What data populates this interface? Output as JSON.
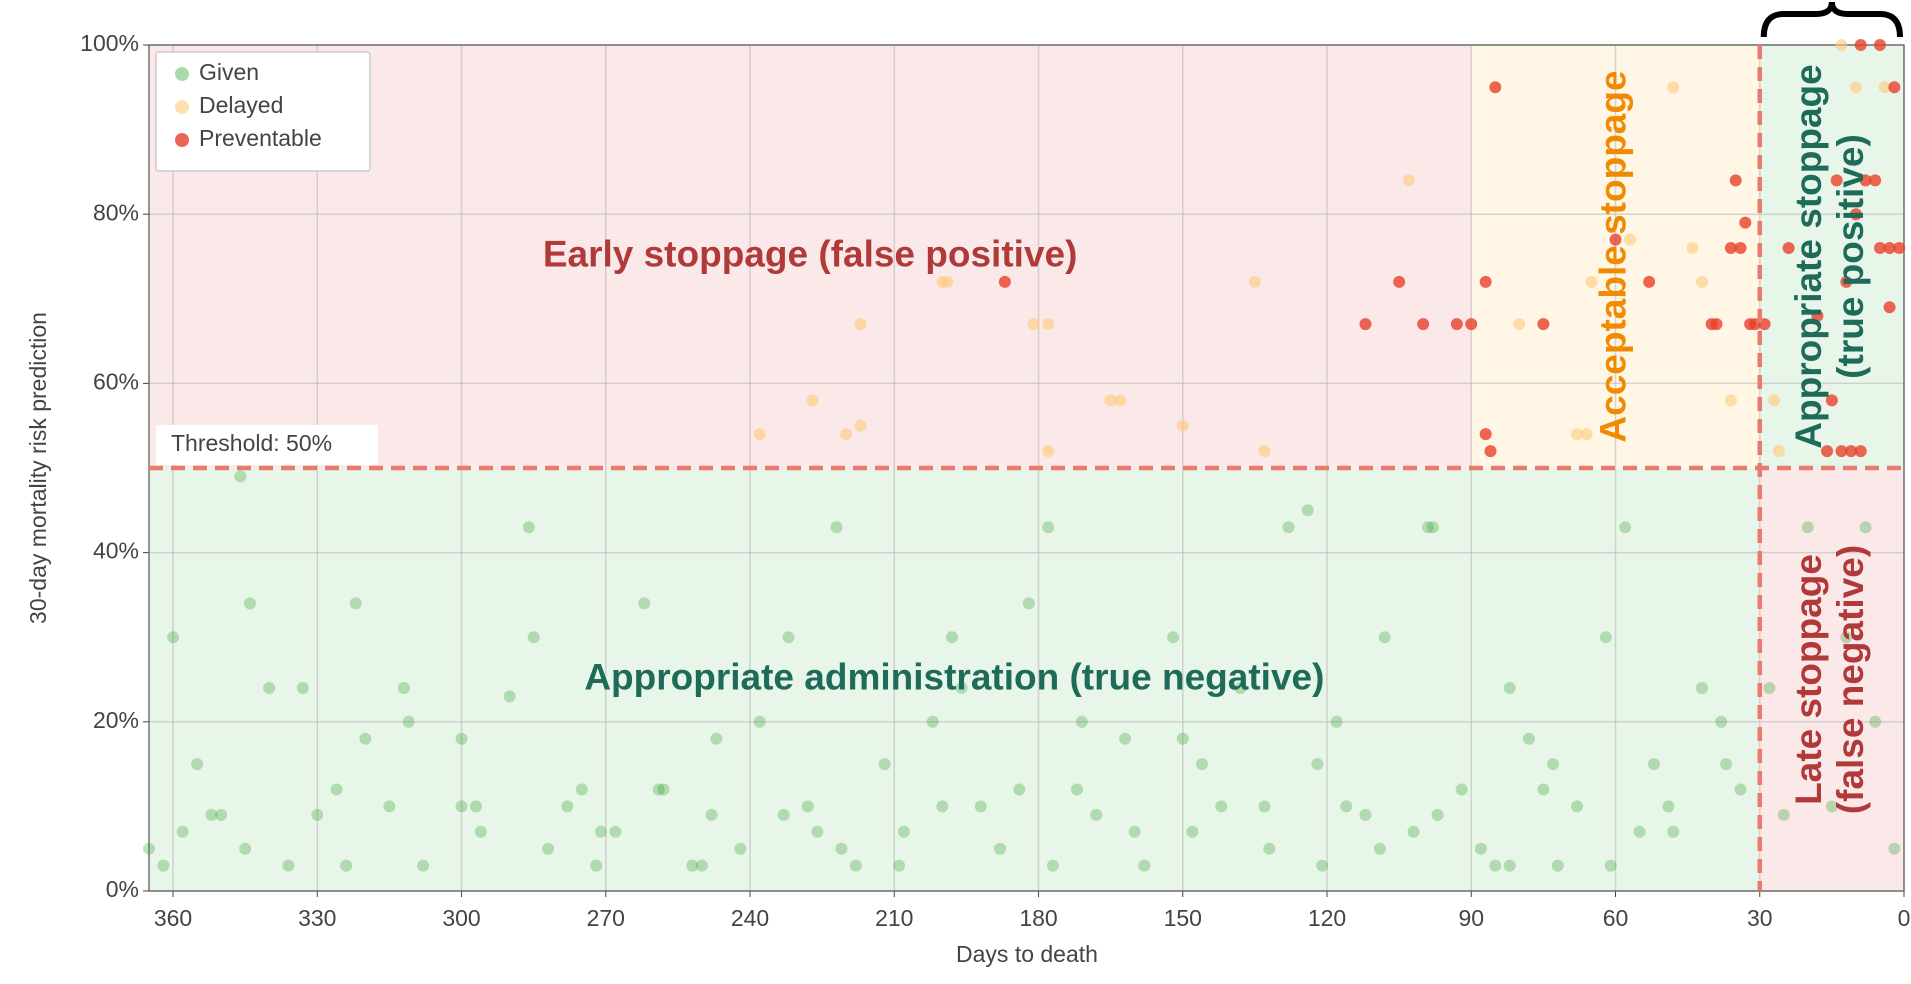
{
  "chart_data": {
    "type": "scatter",
    "xlabel": "Days to death",
    "ylabel": "30-day mortality risk prediction",
    "xlim": [
      365,
      0
    ],
    "ylim": [
      0,
      100
    ],
    "xticks": [
      360,
      330,
      300,
      270,
      240,
      210,
      180,
      150,
      120,
      90,
      60,
      30,
      0
    ],
    "yticks": [
      {
        "value": 0,
        "label": "0%"
      },
      {
        "value": 20,
        "label": "20%"
      },
      {
        "value": 40,
        "label": "40%"
      },
      {
        "value": 60,
        "label": "60%"
      },
      {
        "value": 80,
        "label": "80%"
      },
      {
        "value": 100,
        "label": "100%"
      }
    ],
    "grid": true,
    "legend": "upper left",
    "threshold": {
      "value": 50,
      "label": "Threshold: 50%"
    },
    "cutoff_days": 30,
    "regions": [
      {
        "label_lines": [
          "Early stoppage (false positive)"
        ],
        "x": [
          365,
          90
        ],
        "y": [
          50,
          100
        ],
        "color": "#fbe9e9",
        "text_color": "#b03a3a",
        "vertical": false
      },
      {
        "label_lines": [
          "Acceptable stoppage"
        ],
        "x": [
          90,
          30
        ],
        "y": [
          50,
          100
        ],
        "color": "#fff6e6",
        "text_color": "#f08a00",
        "vertical": true
      },
      {
        "label_lines": [
          "Appropriate stoppage",
          "(true positive)"
        ],
        "x": [
          30,
          0
        ],
        "y": [
          50,
          100
        ],
        "color": "#e8f5e9",
        "text_color": "#1e6b5a",
        "vertical": true
      },
      {
        "label_lines": [
          "Appropriate administration (true negative)"
        ],
        "x": [
          365,
          30
        ],
        "y": [
          0,
          50
        ],
        "color": "#e8f5e9",
        "text_color": "#1e6b5a",
        "vertical": false
      },
      {
        "label_lines": [
          "Late stoppage",
          "(false negative)"
        ],
        "x": [
          30,
          0
        ],
        "y": [
          0,
          50
        ],
        "color": "#fbe9e9",
        "text_color": "#b03a3a",
        "vertical": true
      }
    ],
    "series": [
      {
        "name": "Given",
        "color": "#2ca02c",
        "opacity": 0.3,
        "x": [
          362,
          358,
          355,
          350,
          345,
          340,
          336,
          330,
          326,
          320,
          315,
          312,
          308,
          300,
          296,
          290,
          286,
          282,
          278,
          272,
          268,
          262,
          258,
          252,
          248,
          242,
          238,
          232,
          228,
          222,
          218,
          212,
          208,
          202,
          198,
          192,
          188,
          182,
          178,
          172,
          168,
          162,
          158,
          152,
          148,
          142,
          138,
          132,
          128,
          122,
          118,
          112,
          108,
          102,
          98,
          92,
          88,
          82,
          78,
          72,
          68,
          62,
          58,
          52,
          48,
          42,
          38,
          34,
          360,
          352,
          344,
          333,
          322,
          311,
          297,
          285,
          271,
          259,
          247,
          233,
          221,
          209,
          196,
          184,
          171,
          160,
          146,
          133,
          121,
          109,
          97,
          85,
          73,
          61,
          49,
          37,
          28,
          20,
          12,
          6,
          365,
          346,
          324,
          300,
          275,
          250,
          226,
          200,
          177,
          150,
          124,
          99,
          75,
          55,
          25,
          15,
          8,
          2,
          116,
          82
        ],
        "y": [
          3,
          7,
          15,
          9,
          5,
          24,
          3,
          9,
          12,
          18,
          10,
          24,
          3,
          18,
          7,
          23,
          43,
          5,
          10,
          3,
          7,
          34,
          12,
          3,
          9,
          5,
          20,
          30,
          10,
          43,
          3,
          15,
          7,
          20,
          30,
          10,
          5,
          34,
          43,
          12,
          9,
          18,
          3,
          30,
          7,
          10,
          24,
          5,
          43,
          15,
          20,
          9,
          30,
          7,
          43,
          12,
          5,
          24,
          18,
          3,
          10,
          30,
          43,
          15,
          7,
          24,
          20,
          12,
          30,
          9,
          34,
          24,
          34,
          20,
          10,
          30,
          7,
          12,
          18,
          9,
          5,
          3,
          24,
          12,
          20,
          7,
          15,
          10,
          3,
          5,
          9,
          3,
          15,
          3,
          10,
          15,
          24,
          43,
          30,
          20,
          5,
          49,
          3,
          10,
          12,
          3,
          7,
          10,
          3,
          18,
          45,
          43,
          12,
          7,
          9,
          10,
          43,
          5,
          10,
          3
        ]
      },
      {
        "name": "Delayed",
        "color": "#ffc97a",
        "opacity": 0.6,
        "x": [
          238,
          220,
          217,
          227,
          217,
          200,
          178,
          181,
          165,
          163,
          150,
          135,
          133,
          178,
          103,
          80,
          68,
          66,
          65,
          57,
          48,
          44,
          42,
          36,
          27,
          26,
          10,
          4,
          13,
          199
        ],
        "y": [
          54,
          54,
          55,
          58,
          67,
          72,
          67,
          67,
          58,
          58,
          55,
          72,
          52,
          52,
          84,
          67,
          54,
          54,
          72,
          77,
          95,
          76,
          72,
          58,
          58,
          52,
          95,
          95,
          100,
          72
        ]
      },
      {
        "name": "Preventable",
        "color": "#e8402a",
        "opacity": 0.8,
        "x": [
          187,
          112,
          105,
          100,
          93,
          90,
          85,
          87,
          87,
          86,
          75,
          60,
          53,
          40,
          39,
          35,
          34,
          33,
          36,
          32,
          29,
          31,
          24,
          12,
          13,
          11,
          9,
          15,
          16,
          18,
          5,
          3,
          3,
          1,
          8,
          6,
          5,
          9,
          2,
          14,
          10
        ],
        "y": [
          72,
          67,
          72,
          67,
          67,
          67,
          95,
          72,
          54,
          52,
          67,
          77,
          72,
          67,
          67,
          84,
          76,
          79,
          76,
          67,
          67,
          67,
          76,
          72,
          52,
          52,
          52,
          58,
          52,
          68,
          76,
          69,
          76,
          76,
          84,
          84,
          100,
          100,
          95,
          84,
          80
        ]
      }
    ]
  }
}
